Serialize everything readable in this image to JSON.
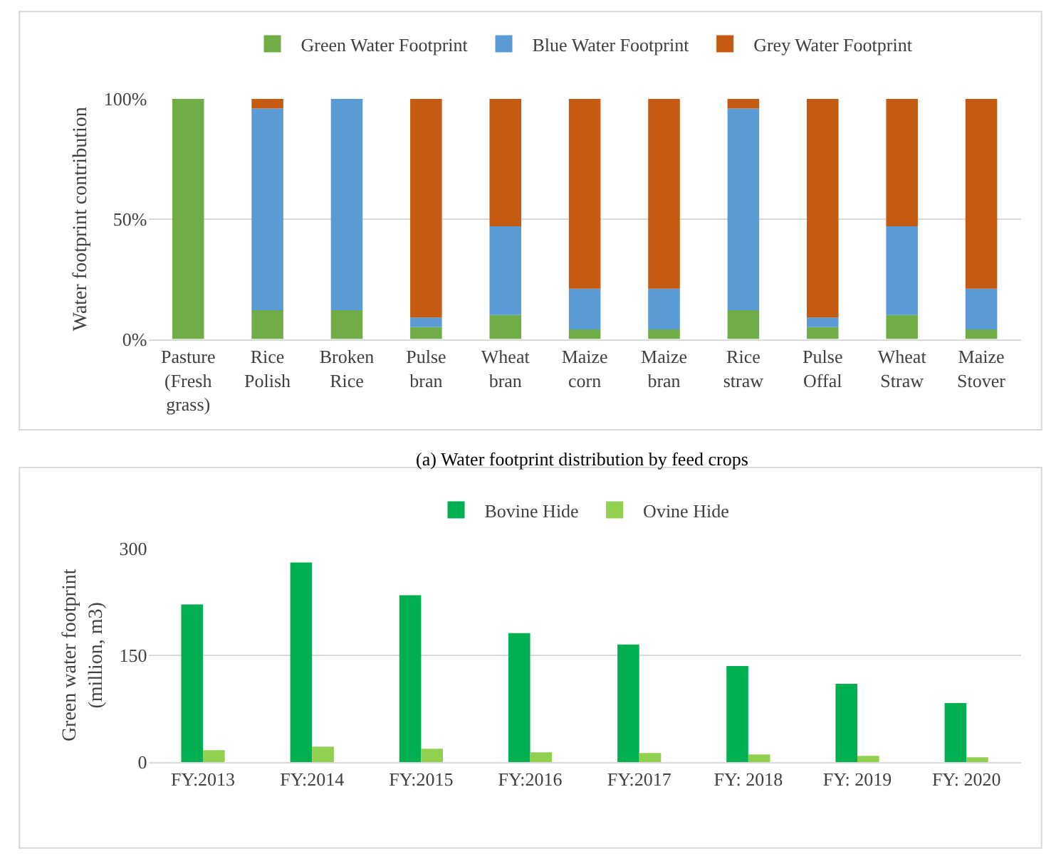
{
  "chart_data": [
    {
      "type": "bar",
      "stacked": true,
      "ylabel": "Water footprint contribution",
      "categories": [
        "Pasture\n(Fresh\ngrass)",
        "Rice\nPolish",
        "Broken\nRice",
        "Pulse\nbran",
        "Wheat\nbran",
        "Maize\ncorn",
        "Maize\nbran",
        "Rice\nstraw",
        "Pulse\nOffal",
        "Wheat\nStraw",
        "Maize\nStover"
      ],
      "series": [
        {
          "name": "Green Water Footprint",
          "color": "#70ad47",
          "values": [
            100,
            12,
            12,
            5,
            10,
            4,
            4,
            12,
            5,
            10,
            4
          ]
        },
        {
          "name": "Blue Water Footprint",
          "color": "#5b9bd5",
          "values": [
            0,
            84,
            88,
            4,
            37,
            17,
            17,
            84,
            4,
            37,
            17
          ]
        },
        {
          "name": "Grey Water Footprint",
          "color": "#c55a11",
          "values": [
            0,
            4,
            0,
            91,
            53,
            79,
            79,
            4,
            91,
            53,
            79
          ]
        }
      ],
      "ylim": [
        0,
        100
      ],
      "yticks": [
        {
          "value": 0,
          "label": "0%"
        },
        {
          "value": 50,
          "label": "50%"
        },
        {
          "value": 100,
          "label": "100%"
        }
      ],
      "grid": "y",
      "legend": "top",
      "annotations": [
        "(a) Water footprint distribution by feed crops"
      ]
    },
    {
      "type": "bar",
      "ylabel": "Green water footprint\n(million, m3)",
      "categories": [
        "FY:2013",
        "FY:2014",
        "FY:2015",
        "FY:2016",
        "FY:2017",
        "FY: 2018",
        "FY: 2019",
        "FY: 2020"
      ],
      "series": [
        {
          "name": "Bovine Hide",
          "color": "#00b050",
          "values": [
            221,
            280,
            234,
            181,
            165,
            135,
            110,
            83
          ]
        },
        {
          "name": "Ovine Hide",
          "color": "#92d050",
          "values": [
            17,
            22,
            19,
            14,
            13,
            11,
            9,
            7
          ]
        }
      ],
      "ylim": [
        0,
        300
      ],
      "yticks": [
        0,
        150,
        300
      ],
      "grid": "y",
      "legend": "top"
    }
  ]
}
